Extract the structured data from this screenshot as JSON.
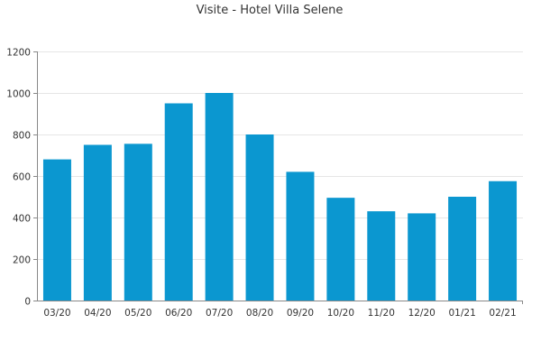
{
  "chart_data": {
    "type": "bar",
    "title": "Visite - Hotel Villa Selene",
    "xlabel": "",
    "ylabel": "",
    "categories": [
      "03/20",
      "04/20",
      "05/20",
      "06/20",
      "07/20",
      "08/20",
      "09/20",
      "10/20",
      "11/20",
      "12/20",
      "01/21",
      "02/21"
    ],
    "values": [
      680,
      750,
      755,
      950,
      1000,
      800,
      620,
      495,
      430,
      420,
      500,
      575
    ],
    "ylim": [
      0,
      1200
    ],
    "yticks": [
      0,
      200,
      400,
      600,
      800,
      1000,
      1200
    ],
    "grid": true,
    "legend": "none",
    "bar_color": "#0b97d0"
  }
}
